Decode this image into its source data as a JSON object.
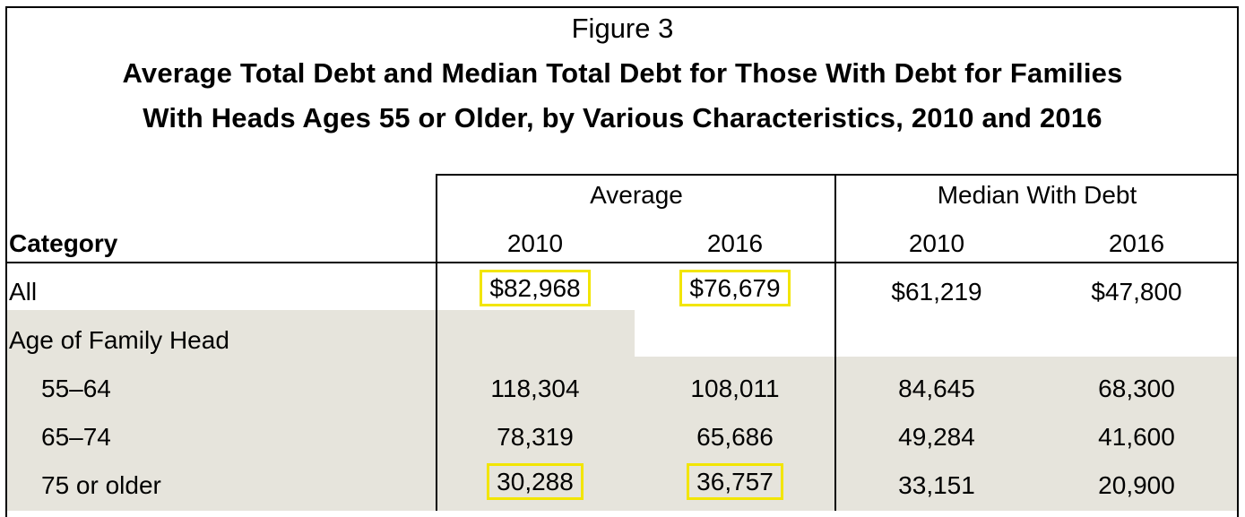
{
  "figure_label": "Figure 3",
  "title_line1": "Average Total Debt and Median Total Debt for Those With Debt for Families",
  "title_line2": "With Heads Ages 55 or Older, by Various Characteristics, 2010 and 2016",
  "headers": {
    "category": "Category",
    "group_average": "Average",
    "group_median": "Median With Debt",
    "years": [
      "2010",
      "2016",
      "2010",
      "2016"
    ]
  },
  "rows": [
    {
      "label": "All",
      "values": [
        "$82,968",
        "$76,679",
        "$61,219",
        "$47,800"
      ]
    },
    {
      "label": "Age of Family Head",
      "values": [
        "",
        "",
        "",
        ""
      ]
    },
    {
      "label": "55–64",
      "values": [
        "118,304",
        "108,011",
        "84,645",
        "68,300"
      ]
    },
    {
      "label": "65–74",
      "values": [
        "78,319",
        "65,686",
        "49,284",
        "41,600"
      ]
    },
    {
      "label": "75 or older",
      "values": [
        "30,288",
        "36,757",
        "33,151",
        "20,900"
      ]
    }
  ],
  "highlight_color": "#f2e500",
  "shade_color": "#e6e4dc"
}
